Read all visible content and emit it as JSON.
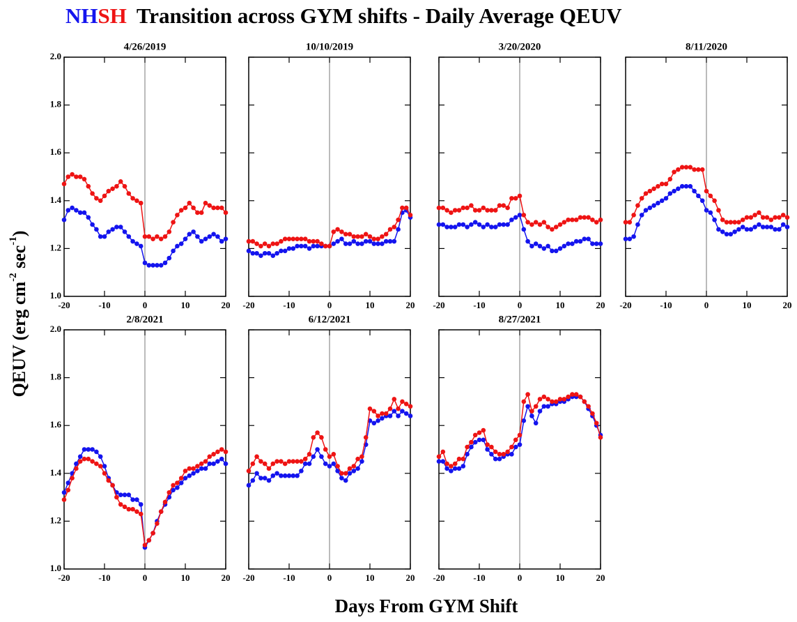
{
  "title": "Transition across GYM shifts - Daily Average QEUV",
  "y_label": [
    "QEUV (erg cm",
    "-2",
    " sec",
    "-1",
    ")"
  ],
  "x_label": "Days From GYM Shift",
  "chart_data": [
    {
      "type": "line",
      "title": "4/26/2019",
      "xlim": [
        -20,
        20
      ],
      "ylim": [
        1.0,
        2.0
      ],
      "xticks": [
        -20,
        -10,
        0,
        10,
        20
      ],
      "yticks": [
        {
          "value": 1.0,
          "label": "1.0"
        },
        1.2,
        1.4,
        1.6,
        1.8,
        {
          "value": 2.0,
          "label": "2.0"
        }
      ],
      "vline": 0,
      "x": [
        -20,
        -19,
        -18,
        -17,
        -16,
        -15,
        -14,
        -13,
        -12,
        -11,
        -10,
        -9,
        -8,
        -7,
        -6,
        -5,
        -4,
        -3,
        -2,
        -1,
        0,
        1,
        2,
        3,
        4,
        5,
        6,
        7,
        8,
        9,
        10,
        11,
        12,
        13,
        14,
        15,
        16,
        17,
        18,
        19,
        20
      ],
      "series": [
        {
          "name": "NH",
          "color": "#1414ee",
          "values": [
            1.32,
            1.36,
            1.37,
            1.36,
            1.35,
            1.35,
            1.33,
            1.3,
            1.28,
            1.25,
            1.25,
            1.27,
            1.28,
            1.29,
            1.29,
            1.27,
            1.25,
            1.23,
            1.22,
            1.21,
            1.14,
            1.13,
            1.13,
            1.13,
            1.13,
            1.14,
            1.16,
            1.19,
            1.21,
            1.22,
            1.24,
            1.26,
            1.27,
            1.25,
            1.23,
            1.24,
            1.25,
            1.26,
            1.25,
            1.23,
            1.24
          ]
        },
        {
          "name": "SH",
          "color": "#ee1414",
          "values": [
            1.47,
            1.5,
            1.51,
            1.5,
            1.5,
            1.49,
            1.46,
            1.43,
            1.41,
            1.4,
            1.42,
            1.44,
            1.45,
            1.46,
            1.48,
            1.46,
            1.43,
            1.41,
            1.4,
            1.39,
            1.25,
            1.25,
            1.24,
            1.25,
            1.24,
            1.25,
            1.27,
            1.31,
            1.34,
            1.36,
            1.37,
            1.39,
            1.37,
            1.35,
            1.35,
            1.39,
            1.38,
            1.37,
            1.37,
            1.37,
            1.35
          ]
        }
      ]
    },
    {
      "type": "line",
      "title": "10/10/2019",
      "xlim": [
        -20,
        20
      ],
      "ylim": [
        1.0,
        2.0
      ],
      "xticks": [
        -20,
        -10,
        0,
        10,
        20
      ],
      "yticks": [
        {
          "value": 1.0,
          "label": "1.0"
        },
        1.2,
        1.4,
        1.6,
        1.8,
        {
          "value": 2.0,
          "label": "2.0"
        }
      ],
      "vline": 0,
      "x": [
        -20,
        -19,
        -18,
        -17,
        -16,
        -15,
        -14,
        -13,
        -12,
        -11,
        -10,
        -9,
        -8,
        -7,
        -6,
        -5,
        -4,
        -3,
        -2,
        -1,
        0,
        1,
        2,
        3,
        4,
        5,
        6,
        7,
        8,
        9,
        10,
        11,
        12,
        13,
        14,
        15,
        16,
        17,
        18,
        19,
        20
      ],
      "series": [
        {
          "name": "NH",
          "color": "#1414ee",
          "values": [
            1.19,
            1.18,
            1.18,
            1.17,
            1.18,
            1.18,
            1.17,
            1.18,
            1.19,
            1.19,
            1.2,
            1.2,
            1.21,
            1.21,
            1.21,
            1.2,
            1.21,
            1.21,
            1.21,
            1.21,
            1.21,
            1.22,
            1.23,
            1.24,
            1.22,
            1.22,
            1.23,
            1.22,
            1.22,
            1.23,
            1.23,
            1.22,
            1.22,
            1.22,
            1.23,
            1.23,
            1.23,
            1.28,
            1.35,
            1.36,
            1.33
          ]
        },
        {
          "name": "SH",
          "color": "#ee1414",
          "values": [
            1.23,
            1.23,
            1.22,
            1.21,
            1.22,
            1.21,
            1.22,
            1.22,
            1.23,
            1.24,
            1.24,
            1.24,
            1.24,
            1.24,
            1.24,
            1.23,
            1.23,
            1.23,
            1.22,
            1.21,
            1.21,
            1.27,
            1.28,
            1.27,
            1.26,
            1.26,
            1.25,
            1.25,
            1.25,
            1.26,
            1.25,
            1.24,
            1.24,
            1.25,
            1.26,
            1.28,
            1.29,
            1.32,
            1.37,
            1.37,
            1.34
          ]
        }
      ]
    },
    {
      "type": "line",
      "title": "3/20/2020",
      "xlim": [
        -20,
        20
      ],
      "ylim": [
        1.0,
        2.0
      ],
      "xticks": [
        -20,
        -10,
        0,
        10,
        20
      ],
      "yticks": [
        {
          "value": 1.0,
          "label": "1.0"
        },
        1.2,
        1.4,
        1.6,
        1.8,
        {
          "value": 2.0,
          "label": "2.0"
        }
      ],
      "vline": 0,
      "x": [
        -20,
        -19,
        -18,
        -17,
        -16,
        -15,
        -14,
        -13,
        -12,
        -11,
        -10,
        -9,
        -8,
        -7,
        -6,
        -5,
        -4,
        -3,
        -2,
        -1,
        0,
        1,
        2,
        3,
        4,
        5,
        6,
        7,
        8,
        9,
        10,
        11,
        12,
        13,
        14,
        15,
        16,
        17,
        18,
        19,
        20
      ],
      "series": [
        {
          "name": "NH",
          "color": "#1414ee",
          "values": [
            1.3,
            1.3,
            1.29,
            1.29,
            1.29,
            1.3,
            1.3,
            1.29,
            1.3,
            1.31,
            1.3,
            1.29,
            1.3,
            1.29,
            1.29,
            1.3,
            1.3,
            1.3,
            1.32,
            1.33,
            1.34,
            1.28,
            1.23,
            1.21,
            1.22,
            1.21,
            1.2,
            1.21,
            1.19,
            1.19,
            1.2,
            1.21,
            1.22,
            1.22,
            1.23,
            1.23,
            1.24,
            1.24,
            1.22,
            1.22,
            1.22
          ]
        },
        {
          "name": "SH",
          "color": "#ee1414",
          "values": [
            1.37,
            1.37,
            1.36,
            1.35,
            1.36,
            1.36,
            1.37,
            1.37,
            1.38,
            1.36,
            1.36,
            1.37,
            1.36,
            1.36,
            1.36,
            1.38,
            1.38,
            1.37,
            1.41,
            1.41,
            1.42,
            1.34,
            1.31,
            1.3,
            1.31,
            1.3,
            1.31,
            1.29,
            1.28,
            1.29,
            1.3,
            1.31,
            1.32,
            1.32,
            1.32,
            1.33,
            1.33,
            1.33,
            1.32,
            1.31,
            1.32
          ]
        }
      ]
    },
    {
      "type": "line",
      "title": "8/11/2020",
      "xlim": [
        -20,
        20
      ],
      "ylim": [
        1.0,
        2.0
      ],
      "xticks": [
        -20,
        -10,
        0,
        10,
        20
      ],
      "yticks": [
        {
          "value": 1.0,
          "label": "1.0"
        },
        1.2,
        1.4,
        1.6,
        1.8,
        {
          "value": 2.0,
          "label": "2.0"
        }
      ],
      "vline": 0,
      "x": [
        -20,
        -19,
        -18,
        -17,
        -16,
        -15,
        -14,
        -13,
        -12,
        -11,
        -10,
        -9,
        -8,
        -7,
        -6,
        -5,
        -4,
        -3,
        -2,
        -1,
        0,
        1,
        2,
        3,
        4,
        5,
        6,
        7,
        8,
        9,
        10,
        11,
        12,
        13,
        14,
        15,
        16,
        17,
        18,
        19,
        20
      ],
      "series": [
        {
          "name": "NH",
          "color": "#1414ee",
          "values": [
            1.24,
            1.24,
            1.25,
            1.3,
            1.34,
            1.36,
            1.37,
            1.38,
            1.39,
            1.4,
            1.41,
            1.43,
            1.44,
            1.45,
            1.46,
            1.46,
            1.46,
            1.44,
            1.42,
            1.4,
            1.36,
            1.35,
            1.32,
            1.28,
            1.27,
            1.26,
            1.26,
            1.27,
            1.28,
            1.29,
            1.28,
            1.28,
            1.29,
            1.3,
            1.29,
            1.29,
            1.29,
            1.28,
            1.28,
            1.3,
            1.29
          ]
        },
        {
          "name": "SH",
          "color": "#ee1414",
          "values": [
            1.31,
            1.31,
            1.34,
            1.38,
            1.41,
            1.43,
            1.44,
            1.45,
            1.46,
            1.47,
            1.47,
            1.49,
            1.52,
            1.53,
            1.54,
            1.54,
            1.54,
            1.53,
            1.53,
            1.53,
            1.44,
            1.42,
            1.4,
            1.36,
            1.32,
            1.31,
            1.31,
            1.31,
            1.31,
            1.32,
            1.33,
            1.33,
            1.34,
            1.35,
            1.33,
            1.33,
            1.32,
            1.33,
            1.33,
            1.34,
            1.33
          ]
        }
      ]
    },
    {
      "type": "line",
      "title": "2/8/2021",
      "xlim": [
        -20,
        20
      ],
      "ylim": [
        1.0,
        2.0
      ],
      "xticks": [
        -20,
        -10,
        0,
        10,
        20
      ],
      "yticks": [
        {
          "value": 1.0,
          "label": "1.0"
        },
        1.2,
        1.4,
        1.6,
        1.8,
        {
          "value": 2.0,
          "label": "2.0"
        }
      ],
      "vline": 0,
      "x": [
        -20,
        -19,
        -18,
        -17,
        -16,
        -15,
        -14,
        -13,
        -12,
        -11,
        -10,
        -9,
        -8,
        -7,
        -6,
        -5,
        -4,
        -3,
        -2,
        -1,
        0,
        1,
        2,
        3,
        4,
        5,
        6,
        7,
        8,
        9,
        10,
        11,
        12,
        13,
        14,
        15,
        16,
        17,
        18,
        19,
        20
      ],
      "series": [
        {
          "name": "NH",
          "color": "#1414ee",
          "values": [
            1.32,
            1.36,
            1.4,
            1.44,
            1.47,
            1.5,
            1.5,
            1.5,
            1.49,
            1.47,
            1.43,
            1.38,
            1.35,
            1.32,
            1.31,
            1.31,
            1.31,
            1.29,
            1.29,
            1.27,
            1.09,
            1.12,
            1.15,
            1.2,
            1.24,
            1.27,
            1.3,
            1.33,
            1.34,
            1.36,
            1.38,
            1.39,
            1.4,
            1.41,
            1.42,
            1.42,
            1.44,
            1.44,
            1.45,
            1.46,
            1.44
          ]
        },
        {
          "name": "SH",
          "color": "#ee1414",
          "values": [
            1.29,
            1.33,
            1.38,
            1.42,
            1.45,
            1.46,
            1.46,
            1.45,
            1.44,
            1.43,
            1.4,
            1.37,
            1.35,
            1.3,
            1.27,
            1.26,
            1.25,
            1.25,
            1.24,
            1.23,
            1.1,
            1.12,
            1.15,
            1.19,
            1.24,
            1.28,
            1.32,
            1.35,
            1.36,
            1.38,
            1.41,
            1.42,
            1.42,
            1.43,
            1.44,
            1.45,
            1.47,
            1.48,
            1.49,
            1.5,
            1.49
          ]
        }
      ]
    },
    {
      "type": "line",
      "title": "6/12/2021",
      "xlim": [
        -20,
        20
      ],
      "ylim": [
        1.0,
        2.0
      ],
      "xticks": [
        -20,
        -10,
        0,
        10,
        20
      ],
      "yticks": [
        {
          "value": 1.0,
          "label": "1.0"
        },
        1.2,
        1.4,
        1.6,
        1.8,
        {
          "value": 2.0,
          "label": "2.0"
        }
      ],
      "vline": 0,
      "x": [
        -20,
        -19,
        -18,
        -17,
        -16,
        -15,
        -14,
        -13,
        -12,
        -11,
        -10,
        -9,
        -8,
        -7,
        -6,
        -5,
        -4,
        -3,
        -2,
        -1,
        0,
        1,
        2,
        3,
        4,
        5,
        6,
        7,
        8,
        9,
        10,
        11,
        12,
        13,
        14,
        15,
        16,
        17,
        18,
        19,
        20
      ],
      "series": [
        {
          "name": "NH",
          "color": "#1414ee",
          "values": [
            1.35,
            1.37,
            1.4,
            1.38,
            1.38,
            1.37,
            1.39,
            1.4,
            1.39,
            1.39,
            1.39,
            1.39,
            1.39,
            1.41,
            1.44,
            1.44,
            1.47,
            1.5,
            1.47,
            1.44,
            1.43,
            1.44,
            1.41,
            1.38,
            1.37,
            1.4,
            1.41,
            1.42,
            1.45,
            1.52,
            1.62,
            1.61,
            1.62,
            1.63,
            1.64,
            1.64,
            1.66,
            1.64,
            1.66,
            1.65,
            1.64
          ]
        },
        {
          "name": "SH",
          "color": "#ee1414",
          "values": [
            1.41,
            1.44,
            1.47,
            1.45,
            1.44,
            1.42,
            1.44,
            1.45,
            1.45,
            1.44,
            1.45,
            1.45,
            1.45,
            1.45,
            1.46,
            1.48,
            1.55,
            1.57,
            1.55,
            1.5,
            1.47,
            1.48,
            1.43,
            1.4,
            1.4,
            1.42,
            1.43,
            1.46,
            1.47,
            1.55,
            1.67,
            1.66,
            1.64,
            1.65,
            1.65,
            1.67,
            1.71,
            1.67,
            1.7,
            1.69,
            1.68
          ]
        }
      ]
    },
    {
      "type": "line",
      "title": "8/27/2021",
      "xlim": [
        -20,
        20
      ],
      "ylim": [
        1.0,
        2.0
      ],
      "xticks": [
        -20,
        -10,
        0,
        10,
        20
      ],
      "yticks": [
        {
          "value": 1.0,
          "label": "1.0"
        },
        1.2,
        1.4,
        1.6,
        1.8,
        {
          "value": 2.0,
          "label": "2.0"
        }
      ],
      "vline": 0,
      "x": [
        -20,
        -19,
        -18,
        -17,
        -16,
        -15,
        -14,
        -13,
        -12,
        -11,
        -10,
        -9,
        -8,
        -7,
        -6,
        -5,
        -4,
        -3,
        -2,
        -1,
        0,
        1,
        2,
        3,
        4,
        5,
        6,
        7,
        8,
        9,
        10,
        11,
        12,
        13,
        14,
        15,
        16,
        17,
        18,
        19,
        20
      ],
      "series": [
        {
          "name": "NH",
          "color": "#1414ee",
          "values": [
            1.45,
            1.45,
            1.42,
            1.41,
            1.42,
            1.42,
            1.43,
            1.48,
            1.51,
            1.53,
            1.54,
            1.54,
            1.5,
            1.48,
            1.46,
            1.46,
            1.47,
            1.48,
            1.48,
            1.51,
            1.52,
            1.62,
            1.68,
            1.64,
            1.61,
            1.66,
            1.68,
            1.68,
            1.69,
            1.69,
            1.7,
            1.7,
            1.71,
            1.72,
            1.72,
            1.72,
            1.7,
            1.67,
            1.64,
            1.6,
            1.56
          ]
        },
        {
          "name": "SH",
          "color": "#ee1414",
          "values": [
            1.47,
            1.49,
            1.44,
            1.43,
            1.44,
            1.46,
            1.46,
            1.51,
            1.53,
            1.56,
            1.57,
            1.58,
            1.52,
            1.51,
            1.49,
            1.48,
            1.48,
            1.49,
            1.51,
            1.54,
            1.56,
            1.7,
            1.73,
            1.66,
            1.68,
            1.71,
            1.72,
            1.71,
            1.7,
            1.7,
            1.71,
            1.71,
            1.72,
            1.73,
            1.73,
            1.72,
            1.7,
            1.68,
            1.65,
            1.61,
            1.55
          ]
        }
      ]
    }
  ]
}
